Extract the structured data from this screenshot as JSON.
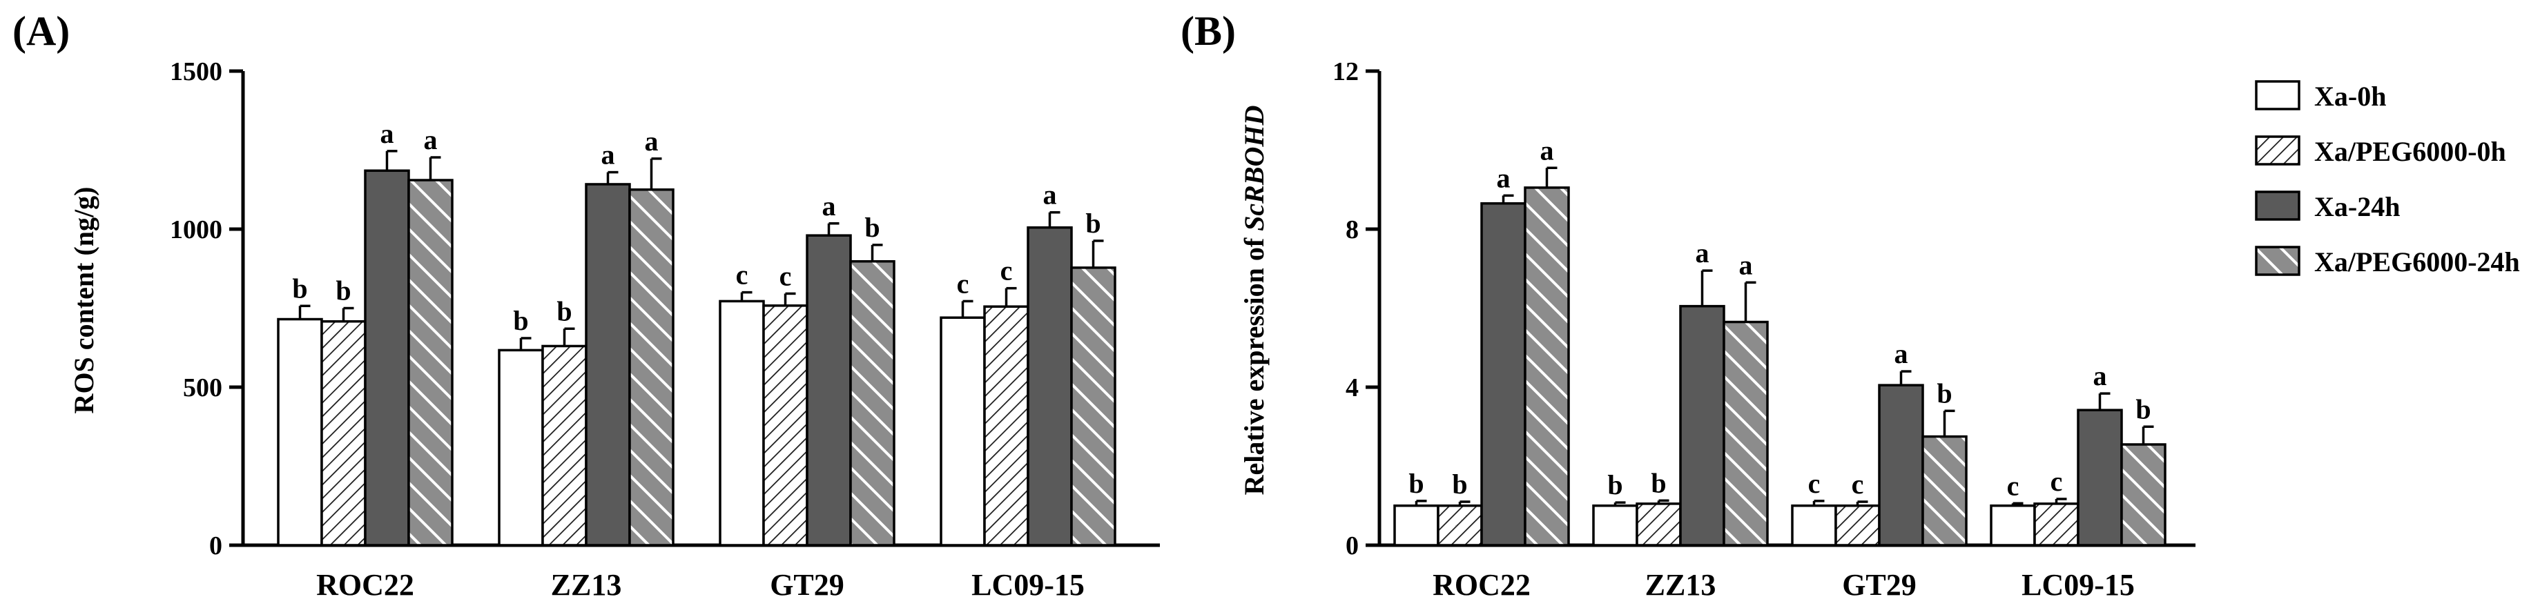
{
  "chart_data": [
    {
      "type": "bar",
      "panel": "(A)",
      "ylabel": "ROS content (ng/g)",
      "ylim": [
        0,
        1500
      ],
      "yticks": [
        0,
        500,
        1000,
        1500
      ],
      "categories": [
        "ROC22",
        "ZZ13",
        "GT29",
        "LC09-15"
      ],
      "series": [
        {
          "name": "Xa-0h",
          "values": [
            715,
            617,
            772,
            720
          ],
          "errors": [
            42,
            38,
            28,
            52
          ],
          "labels": [
            "b",
            "b",
            "c",
            "c"
          ]
        },
        {
          "name": "Xa/PEG6000-0h",
          "values": [
            708,
            630,
            758,
            755
          ],
          "errors": [
            42,
            55,
            38,
            58
          ],
          "labels": [
            "b",
            "b",
            "c",
            "c"
          ]
        },
        {
          "name": "Xa-24h",
          "values": [
            1185,
            1142,
            980,
            1005
          ],
          "errors": [
            62,
            38,
            38,
            48
          ],
          "labels": [
            "a",
            "a",
            "a",
            "a"
          ]
        },
        {
          "name": "Xa/PEG6000-24h",
          "values": [
            1155,
            1125,
            898,
            878
          ],
          "errors": [
            72,
            98,
            52,
            85
          ],
          "labels": [
            "a",
            "a",
            "b",
            "b"
          ]
        }
      ]
    },
    {
      "type": "bar",
      "panel": "(B)",
      "ylabel_prefix": "Relative expression of ",
      "ylabel_gene": "ScRBOHD",
      "ylim": [
        0,
        12
      ],
      "yticks": [
        0,
        4,
        8,
        12
      ],
      "categories": [
        "ROC22",
        "ZZ13",
        "GT29",
        "LC09-15"
      ],
      "series": [
        {
          "name": "Xa-0h",
          "values": [
            1.0,
            1.0,
            1.0,
            1.0
          ],
          "errors": [
            0.12,
            0.08,
            0.12,
            0.06
          ],
          "labels": [
            "b",
            "b",
            "c",
            "c"
          ]
        },
        {
          "name": "Xa/PEG6000-0h",
          "values": [
            1.0,
            1.05,
            1.0,
            1.05
          ],
          "errors": [
            0.1,
            0.08,
            0.1,
            0.12
          ],
          "labels": [
            "b",
            "b",
            "c",
            "c"
          ]
        },
        {
          "name": "Xa-24h",
          "values": [
            8.65,
            6.05,
            4.05,
            3.42
          ],
          "errors": [
            0.2,
            0.9,
            0.35,
            0.42
          ],
          "labels": [
            "a",
            "a",
            "a",
            "a"
          ]
        },
        {
          "name": "Xa/PEG6000-24h",
          "values": [
            9.05,
            5.65,
            2.75,
            2.55
          ],
          "errors": [
            0.5,
            1.0,
            0.65,
            0.45
          ],
          "labels": [
            "a",
            "a",
            "b",
            "b"
          ]
        }
      ]
    }
  ],
  "legend": {
    "items": [
      "Xa-0h",
      "Xa/PEG6000-0h",
      "Xa-24h",
      "Xa/PEG6000-24h"
    ]
  },
  "colors": {
    "axis": "#000000",
    "bar_open": "#ffffff",
    "bar_solid": "#5a5a5a",
    "hatch_line": "#1a1a1a",
    "hatch_grey_bg": "#8c8c8c",
    "hatch_grey_line": "#ffffff"
  }
}
